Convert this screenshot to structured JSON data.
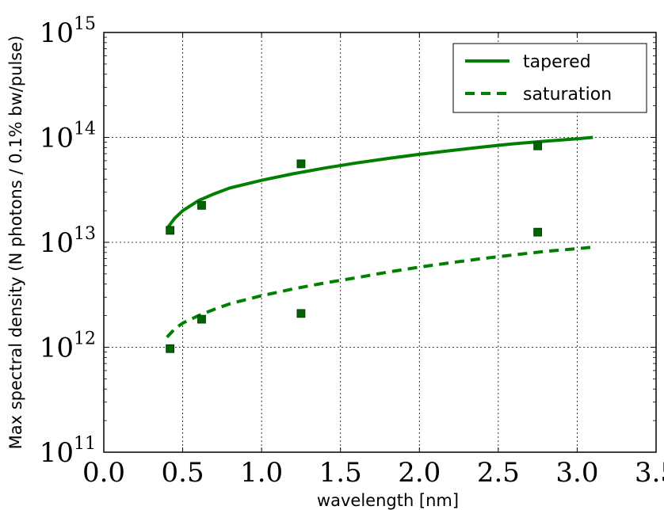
{
  "chart_data": {
    "type": "line",
    "title": "",
    "xlabel": "wavelength [nm]",
    "ylabel": "Max spectral density (N photons / 0.1% bw/pulse)",
    "xlim": [
      0.0,
      3.5
    ],
    "ylim": [
      100000000000.0,
      1000000000000000.0
    ],
    "yscale": "log",
    "grid": true,
    "legend_position": "top-right",
    "x_ticks": [
      {
        "value": 0.0,
        "label": "0.0"
      },
      {
        "value": 0.5,
        "label": "0.5"
      },
      {
        "value": 1.0,
        "label": "1.0"
      },
      {
        "value": 1.5,
        "label": "1.5"
      },
      {
        "value": 2.0,
        "label": "2.0"
      },
      {
        "value": 2.5,
        "label": "2.5"
      },
      {
        "value": 3.0,
        "label": "3.0"
      },
      {
        "value": 3.5,
        "label": "3.5"
      }
    ],
    "y_ticks": [
      {
        "value": 100000000000.0,
        "base": "10",
        "exp": "11"
      },
      {
        "value": 1000000000000.0,
        "base": "10",
        "exp": "12"
      },
      {
        "value": 10000000000000.0,
        "base": "10",
        "exp": "13"
      },
      {
        "value": 100000000000000.0,
        "base": "10",
        "exp": "14"
      },
      {
        "value": 1000000000000000.0,
        "base": "10",
        "exp": "15"
      }
    ],
    "series": [
      {
        "name": "tapered",
        "style": "solid",
        "color": "#008000",
        "x": [
          0.4,
          0.45,
          0.5,
          0.6,
          0.7,
          0.8,
          1.0,
          1.2,
          1.4,
          1.6,
          1.8,
          2.0,
          2.2,
          2.4,
          2.6,
          2.8,
          3.0,
          3.1
        ],
        "y": [
          13500000000000.0,
          17000000000000.0,
          20000000000000.0,
          25000000000000.0,
          29000000000000.0,
          33000000000000.0,
          39000000000000.0,
          45000000000000.0,
          51000000000000.0,
          57000000000000.0,
          63000000000000.0,
          69000000000000.0,
          75000000000000.0,
          81000000000000.0,
          87000000000000.0,
          92000000000000.0,
          97000000000000.0,
          100000000000000.0
        ]
      },
      {
        "name": "saturation",
        "style": "dashed",
        "color": "#008000",
        "x": [
          0.4,
          0.45,
          0.5,
          0.6,
          0.7,
          0.8,
          1.0,
          1.2,
          1.4,
          1.6,
          1.8,
          2.0,
          2.2,
          2.4,
          2.6,
          2.8,
          3.0,
          3.1
        ],
        "y": [
          1250000000000.0,
          1500000000000.0,
          1700000000000.0,
          2000000000000.0,
          2300000000000.0,
          2600000000000.0,
          3100000000000.0,
          3600000000000.0,
          4100000000000.0,
          4600000000000.0,
          5200000000000.0,
          5800000000000.0,
          6400000000000.0,
          7000000000000.0,
          7600000000000.0,
          8200000000000.0,
          8700000000000.0,
          9000000000000.0
        ]
      }
    ],
    "markers": {
      "color": "#006400",
      "points": [
        {
          "x": 0.42,
          "y": 13000000000000.0
        },
        {
          "x": 0.62,
          "y": 22500000000000.0
        },
        {
          "x": 1.25,
          "y": 56000000000000.0
        },
        {
          "x": 2.75,
          "y": 83000000000000.0
        },
        {
          "x": 0.42,
          "y": 970000000000.0
        },
        {
          "x": 0.62,
          "y": 1850000000000.0
        },
        {
          "x": 1.25,
          "y": 2100000000000.0
        },
        {
          "x": 2.75,
          "y": 12500000000000.0
        }
      ]
    }
  }
}
